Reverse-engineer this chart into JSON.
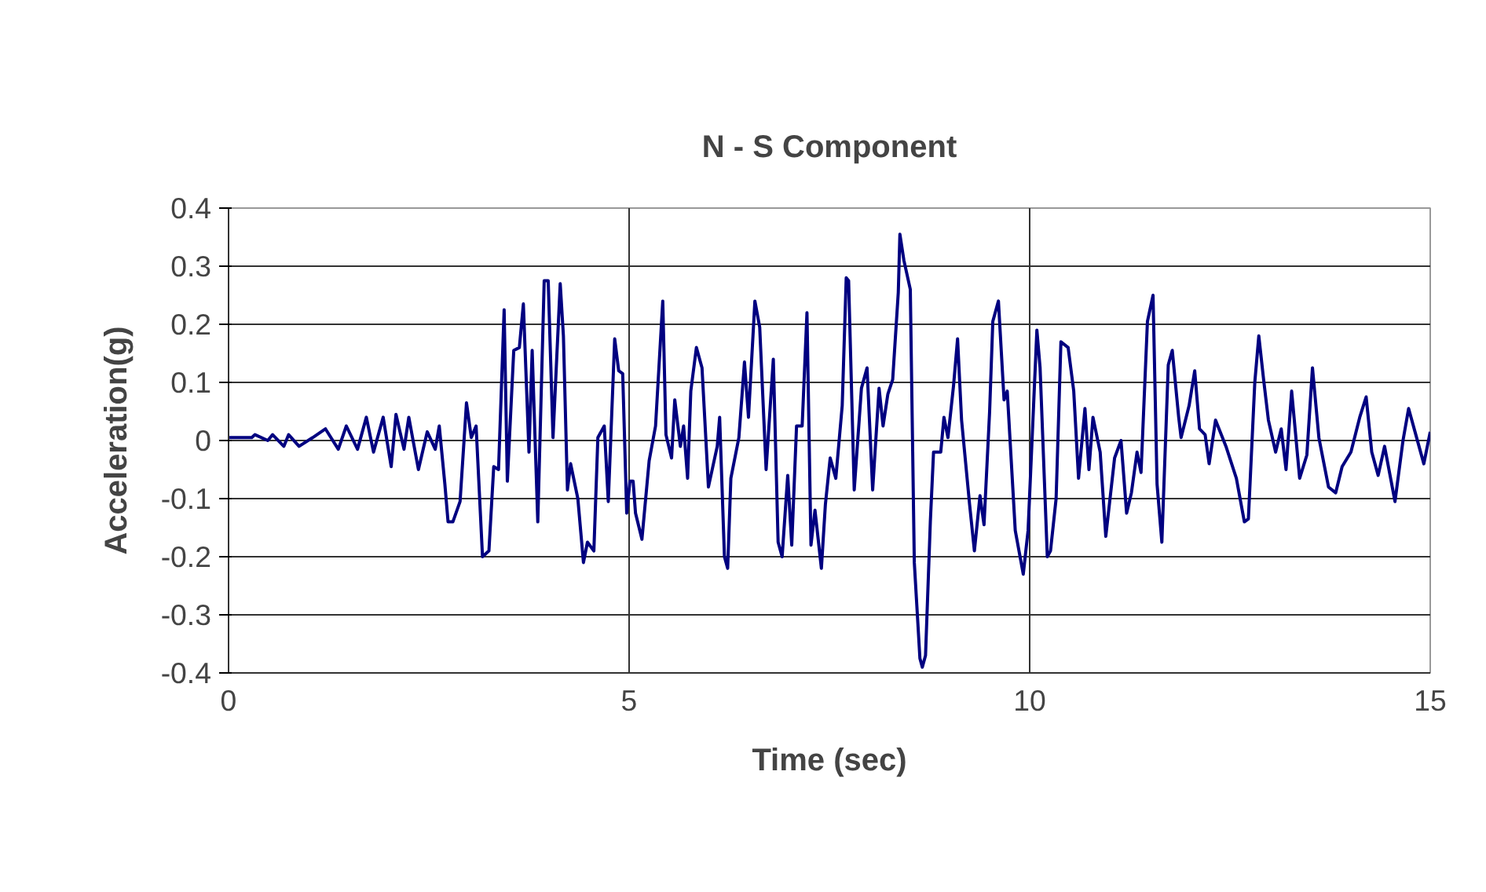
{
  "chart_data": {
    "type": "line",
    "title": "N - S Component",
    "xlabel": "Time (sec)",
    "ylabel": "Acceleration(g)",
    "xlim": [
      0,
      15
    ],
    "xticks": [
      0,
      5,
      10,
      15
    ],
    "ylim": [
      -0.4,
      0.4
    ],
    "yticks": [
      {
        "value": -0.4,
        "label": "-0.4"
      },
      {
        "value": -0.3,
        "label": "-0.3"
      },
      {
        "value": -0.2,
        "label": "-0.2"
      },
      {
        "value": -0.1,
        "label": "-0.1"
      },
      0,
      {
        "value": 0.1,
        "label": "0.1"
      },
      {
        "value": 0.2,
        "label": "0.2"
      },
      {
        "value": 0.3,
        "label": "0.3"
      },
      {
        "value": 0.4,
        "label": "0.4"
      }
    ],
    "grid": true,
    "marker": "none",
    "line_style": "solid",
    "series": [
      {
        "color": "#000080",
        "x": [
          0,
          0.29,
          0.33,
          0.49,
          0.55,
          0.69,
          0.75,
          0.88,
          1.05,
          1.21,
          1.37,
          1.47,
          1.61,
          1.72,
          1.81,
          1.93,
          2.03,
          2.09,
          2.19,
          2.25,
          2.37,
          2.48,
          2.58,
          2.63,
          2.7,
          2.74,
          2.8,
          2.89,
          2.97,
          3.03,
          3.09,
          3.17,
          3.25,
          3.31,
          3.37,
          3.44,
          3.48,
          3.56,
          3.63,
          3.68,
          3.75,
          3.79,
          3.86,
          3.94,
          3.99,
          4.05,
          4.14,
          4.18,
          4.23,
          4.27,
          4.36,
          4.43,
          4.48,
          4.56,
          4.61,
          4.69,
          4.74,
          4.82,
          4.87,
          4.92,
          4.97,
          5.01,
          5.05,
          5.08,
          5.16,
          5.25,
          5.33,
          5.42,
          5.46,
          5.53,
          5.57,
          5.64,
          5.68,
          5.73,
          5.77,
          5.84,
          5.91,
          5.99,
          6.1,
          6.13,
          6.19,
          6.23,
          6.27,
          6.37,
          6.44,
          6.49,
          6.57,
          6.63,
          6.71,
          6.8,
          6.86,
          6.91,
          6.98,
          7.03,
          7.09,
          7.16,
          7.22,
          7.27,
          7.32,
          7.4,
          7.45,
          7.51,
          7.58,
          7.66,
          7.71,
          7.74,
          7.81,
          7.9,
          7.97,
          8.04,
          8.12,
          8.17,
          8.23,
          8.29,
          8.36,
          8.38,
          8.43,
          8.51,
          8.56,
          8.63,
          8.66,
          8.7,
          8.76,
          8.8,
          8.89,
          8.93,
          8.98,
          9.05,
          9.1,
          9.15,
          9.25,
          9.31,
          9.38,
          9.43,
          9.5,
          9.54,
          9.61,
          9.68,
          9.72,
          9.82,
          9.92,
          9.98,
          10.09,
          10.13,
          10.22,
          10.26,
          10.33,
          10.39,
          10.48,
          10.55,
          10.61,
          10.69,
          10.74,
          10.79,
          10.88,
          10.95,
          11.06,
          11.14,
          11.21,
          11.27,
          11.34,
          11.39,
          11.47,
          11.54,
          11.59,
          11.65,
          11.73,
          11.78,
          11.86,
          11.89,
          11.99,
          12.06,
          12.12,
          12.19,
          12.24,
          12.32,
          12.45,
          12.58,
          12.68,
          12.73,
          12.81,
          12.86,
          12.92,
          12.98,
          13.07,
          13.14,
          13.2,
          13.27,
          13.37,
          13.46,
          13.53,
          13.61,
          13.73,
          13.82,
          13.9,
          14.01,
          14.12,
          14.2,
          14.27,
          14.35,
          14.43,
          14.56,
          14.66,
          14.73,
          14.82,
          14.92,
          15.0
        ],
        "values": [
          0.005,
          0.005,
          0.01,
          0,
          0.01,
          -0.01,
          0.01,
          -0.01,
          0.005,
          0.02,
          -0.015,
          0.025,
          -0.015,
          0.04,
          -0.02,
          0.04,
          -0.045,
          0.045,
          -0.015,
          0.04,
          -0.05,
          0.015,
          -0.015,
          0.025,
          -0.075,
          -0.14,
          -0.14,
          -0.105,
          0.065,
          0.005,
          0.025,
          -0.2,
          -0.19,
          -0.045,
          -0.05,
          0.225,
          -0.07,
          0.155,
          0.16,
          0.235,
          -0.02,
          0.155,
          -0.14,
          0.275,
          0.275,
          0.005,
          0.27,
          0.18,
          -0.085,
          -0.04,
          -0.1,
          -0.21,
          -0.175,
          -0.19,
          0.005,
          0.025,
          -0.105,
          0.175,
          0.12,
          0.115,
          -0.125,
          -0.07,
          -0.07,
          -0.125,
          -0.17,
          -0.035,
          0.025,
          0.24,
          0.01,
          -0.03,
          0.07,
          -0.01,
          0.025,
          -0.065,
          0.085,
          0.16,
          0.125,
          -0.08,
          -0.01,
          0.04,
          -0.2,
          -0.22,
          -0.065,
          0.005,
          0.135,
          0.04,
          0.24,
          0.195,
          -0.05,
          0.14,
          -0.175,
          -0.2,
          -0.06,
          -0.18,
          0.025,
          0.025,
          0.22,
          -0.18,
          -0.12,
          -0.22,
          -0.11,
          -0.03,
          -0.065,
          0.06,
          0.28,
          0.275,
          -0.085,
          0.09,
          0.125,
          -0.085,
          0.09,
          0.025,
          0.08,
          0.105,
          0.255,
          0.355,
          0.31,
          0.26,
          -0.21,
          -0.375,
          -0.39,
          -0.37,
          -0.14,
          -0.02,
          -0.02,
          0.04,
          0.005,
          0.095,
          0.175,
          0.035,
          -0.11,
          -0.19,
          -0.095,
          -0.145,
          0.05,
          0.205,
          0.24,
          0.07,
          0.085,
          -0.155,
          -0.23,
          -0.155,
          0.19,
          0.125,
          -0.2,
          -0.19,
          -0.1,
          0.17,
          0.16,
          0.085,
          -0.065,
          0.055,
          -0.05,
          0.04,
          -0.02,
          -0.165,
          -0.03,
          0,
          -0.125,
          -0.09,
          -0.02,
          -0.055,
          0.205,
          0.25,
          -0.075,
          -0.175,
          0.13,
          0.155,
          0.04,
          0.005,
          0.06,
          0.12,
          0.02,
          0.01,
          -0.04,
          0.035,
          -0.01,
          -0.065,
          -0.14,
          -0.135,
          0.1,
          0.18,
          0.105,
          0.035,
          -0.02,
          0.02,
          -0.05,
          0.085,
          -0.065,
          -0.025,
          0.125,
          0.005,
          -0.08,
          -0.09,
          -0.045,
          -0.02,
          0.04,
          0.075,
          -0.02,
          -0.06,
          -0.01,
          -0.105,
          0,
          0.055,
          0.01,
          -0.04,
          0.015
        ]
      }
    ]
  }
}
